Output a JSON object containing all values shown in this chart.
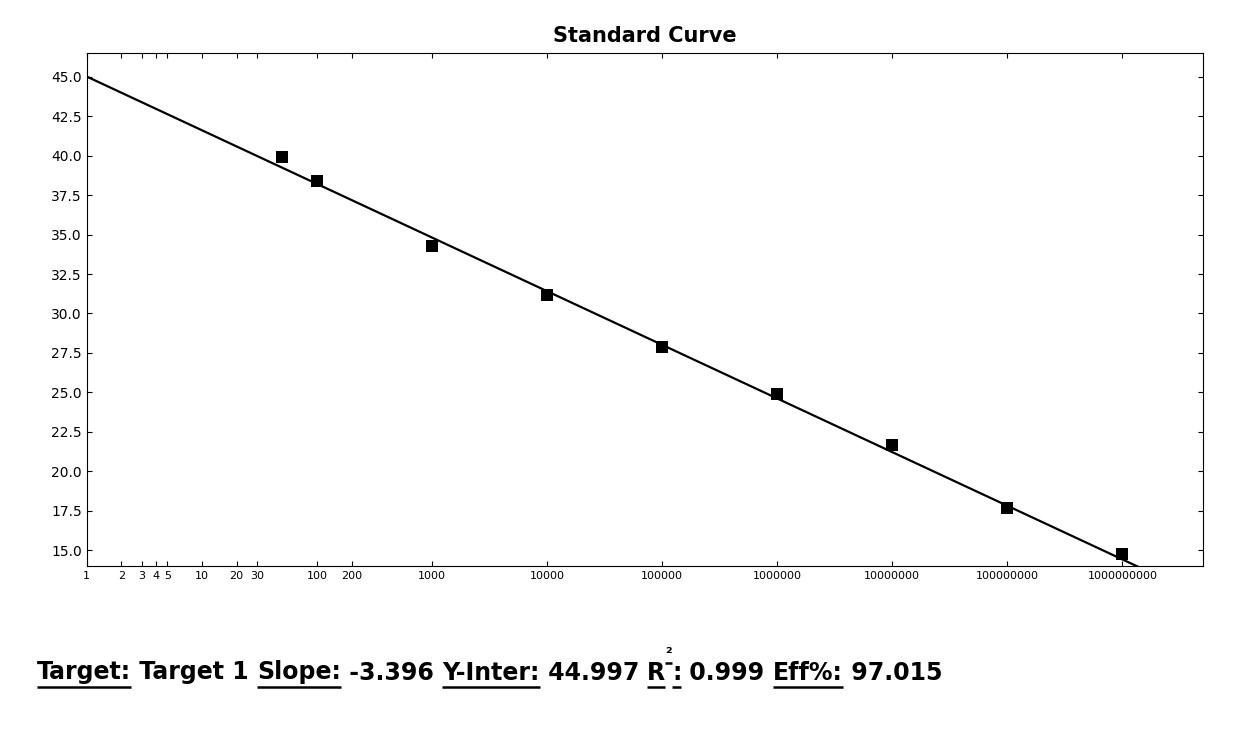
{
  "title": "Standard Curve",
  "title_fontsize": 15,
  "title_fontweight": "bold",
  "data_points_x": [
    50,
    100,
    1000,
    10000,
    100000,
    1000000,
    10000000,
    100000000,
    1000000000
  ],
  "data_points_y": [
    39.9,
    38.4,
    34.3,
    31.2,
    27.9,
    24.9,
    21.7,
    17.7,
    14.8
  ],
  "slope": -3.396,
  "y_inter": 44.997,
  "r2": 0.999,
  "eff": 97.015,
  "xlim_min": 1,
  "xlim_max": 5000000000,
  "ylim_min": 14.0,
  "ylim_max": 46.5,
  "yticks": [
    15.0,
    17.5,
    20.0,
    22.5,
    25.0,
    27.5,
    30.0,
    32.5,
    35.0,
    37.5,
    40.0,
    42.5,
    45.0
  ],
  "line_color": "#000000",
  "marker_color": "#000000",
  "marker_size": 8,
  "background_color": "#ffffff",
  "annotation_fontsize": 17,
  "x_major_ticks": [
    1,
    2,
    3,
    4,
    5,
    10,
    20,
    30,
    100,
    200,
    1000,
    10000,
    100000,
    1000000,
    10000000,
    100000000,
    1000000000
  ],
  "x_major_labels": [
    "1",
    "2",
    "3",
    "4",
    "5",
    "10",
    "20",
    "30",
    "100",
    "200",
    "1000",
    "10000",
    "100000",
    "1000000",
    "10000000",
    "100000000",
    "1000000000"
  ]
}
